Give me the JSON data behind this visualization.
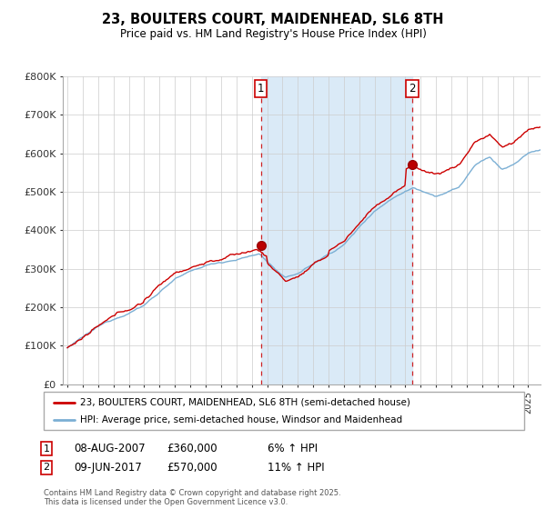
{
  "title": "23, BOULTERS COURT, MAIDENHEAD, SL6 8TH",
  "subtitle": "Price paid vs. HM Land Registry's House Price Index (HPI)",
  "legend_line1": "23, BOULTERS COURT, MAIDENHEAD, SL6 8TH (semi-detached house)",
  "legend_line2": "HPI: Average price, semi-detached house, Windsor and Maidenhead",
  "footnote": "Contains HM Land Registry data © Crown copyright and database right 2025.\nThis data is licensed under the Open Government Licence v3.0.",
  "annotation1_date": "08-AUG-2007",
  "annotation1_price": "£360,000",
  "annotation1_hpi": "6% ↑ HPI",
  "annotation2_date": "09-JUN-2017",
  "annotation2_price": "£570,000",
  "annotation2_hpi": "11% ↑ HPI",
  "price_color": "#cc0000",
  "hpi_color": "#7bafd4",
  "shade_color": "#daeaf7",
  "ylim_max": 800000,
  "yticks": [
    0,
    100000,
    200000,
    300000,
    400000,
    500000,
    600000,
    700000,
    800000
  ],
  "ytick_labels": [
    "£0",
    "£100K",
    "£200K",
    "£300K",
    "£400K",
    "£500K",
    "£600K",
    "£700K",
    "£800K"
  ],
  "sale1_year": 2007.59,
  "sale1_price": 360000,
  "sale2_year": 2017.44,
  "sale2_price": 570000
}
